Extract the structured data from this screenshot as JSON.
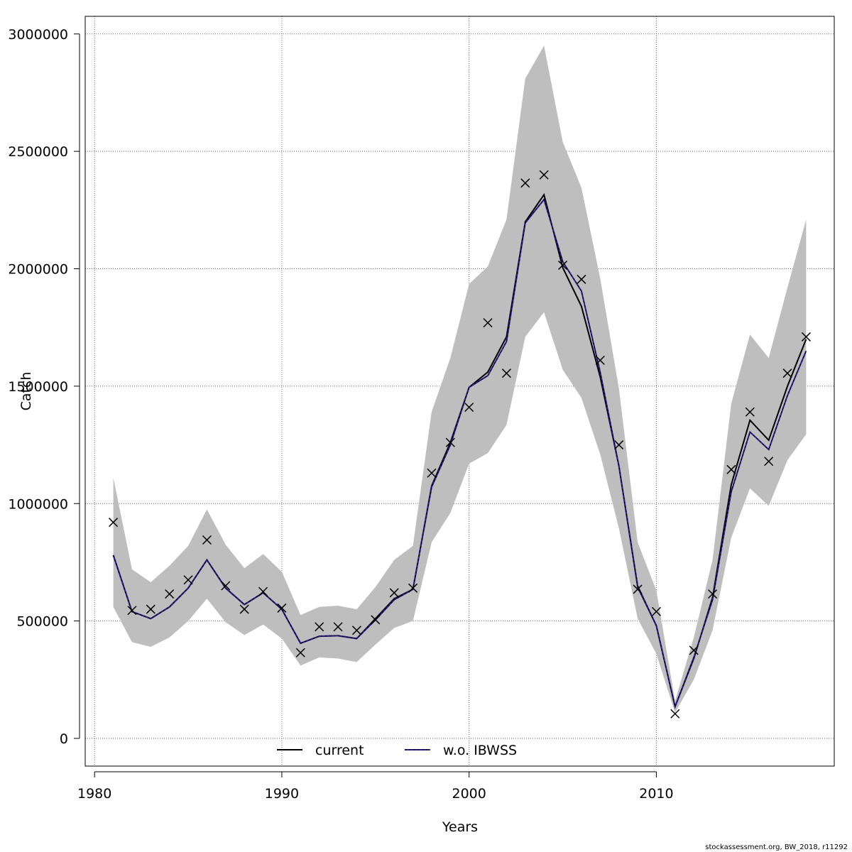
{
  "chart_data": {
    "type": "line",
    "xlabel": "Years",
    "ylabel": "Catch",
    "xlim": [
      1979.5,
      2019.5
    ],
    "ylim": [
      -118000,
      3075000
    ],
    "x_ticks": [
      1980,
      1990,
      2000,
      2010
    ],
    "x_tick_labels": [
      "1980",
      "1990",
      "2000",
      "2010"
    ],
    "y_ticks": [
      0,
      500000,
      1000000,
      1500000,
      2000000,
      2500000,
      3000000
    ],
    "y_tick_labels": [
      "0",
      "500000",
      "1000000",
      "1500000",
      "2000000",
      "2500000",
      "3000000"
    ],
    "grid": true,
    "legend_position": "bottom-center",
    "x": [
      1981,
      1982,
      1983,
      1984,
      1985,
      1986,
      1987,
      1988,
      1989,
      1990,
      1991,
      1992,
      1993,
      1994,
      1995,
      1996,
      1997,
      1998,
      1999,
      2000,
      2001,
      2002,
      2003,
      2004,
      2005,
      2006,
      2007,
      2008,
      2009,
      2010,
      2011,
      2012,
      2013,
      2014,
      2015,
      2016,
      2017,
      2018
    ],
    "band": {
      "upper": [
        1110000,
        720000,
        665000,
        735000,
        820000,
        975000,
        825000,
        725000,
        785000,
        710000,
        525000,
        560000,
        565000,
        550000,
        645000,
        760000,
        820000,
        1390000,
        1620000,
        1935000,
        2010000,
        2210000,
        2810000,
        2950000,
        2540000,
        2345000,
        1960000,
        1490000,
        835000,
        630000,
        160000,
        430000,
        760000,
        1425000,
        1720000,
        1620000,
        1920000,
        2210000
      ],
      "lower": [
        560000,
        410000,
        390000,
        430000,
        500000,
        595000,
        495000,
        440000,
        485000,
        425000,
        310000,
        345000,
        340000,
        325000,
        400000,
        470000,
        500000,
        835000,
        960000,
        1170000,
        1215000,
        1335000,
        1710000,
        1815000,
        1570000,
        1450000,
        1210000,
        895000,
        510000,
        360000,
        110000,
        250000,
        460000,
        855000,
        1065000,
        990000,
        1185000,
        1295000
      ]
    },
    "series": [
      {
        "name": "current",
        "color": "#000000",
        "values": [
          780000,
          540000,
          510000,
          560000,
          640000,
          760000,
          640000,
          570000,
          620000,
          550000,
          405000,
          435000,
          437000,
          425000,
          510000,
          595000,
          635000,
          1075000,
          1260000,
          1495000,
          1560000,
          1710000,
          2200000,
          2315000,
          2005000,
          1840000,
          1540000,
          1160000,
          645000,
          480000,
          135000,
          340000,
          600000,
          1080000,
          1355000,
          1270000,
          1500000,
          1700000
        ]
      },
      {
        "name": "w.o. IBWSS",
        "color": "#2c1e8a",
        "values": [
          780000,
          540000,
          510000,
          560000,
          640000,
          760000,
          640000,
          570000,
          620000,
          550000,
          405000,
          435000,
          437000,
          425000,
          505000,
          590000,
          635000,
          1070000,
          1250000,
          1495000,
          1545000,
          1690000,
          2195000,
          2295000,
          2030000,
          1905000,
          1560000,
          1160000,
          650000,
          480000,
          135000,
          345000,
          590000,
          1050000,
          1305000,
          1230000,
          1460000,
          1650000
        ]
      }
    ],
    "observed": {
      "marker": "x",
      "values": [
        920000,
        545000,
        550000,
        615000,
        675000,
        845000,
        650000,
        550000,
        625000,
        555000,
        365000,
        475000,
        475000,
        460000,
        505000,
        620000,
        640000,
        1130000,
        1260000,
        1410000,
        1770000,
        1555000,
        2365000,
        2400000,
        2015000,
        1955000,
        1610000,
        1250000,
        635000,
        540000,
        105000,
        375000,
        615000,
        1145000,
        1390000,
        1180000,
        1555000,
        1710000
      ]
    },
    "credit": "stockassessment.org, BW_2018, r11292"
  }
}
